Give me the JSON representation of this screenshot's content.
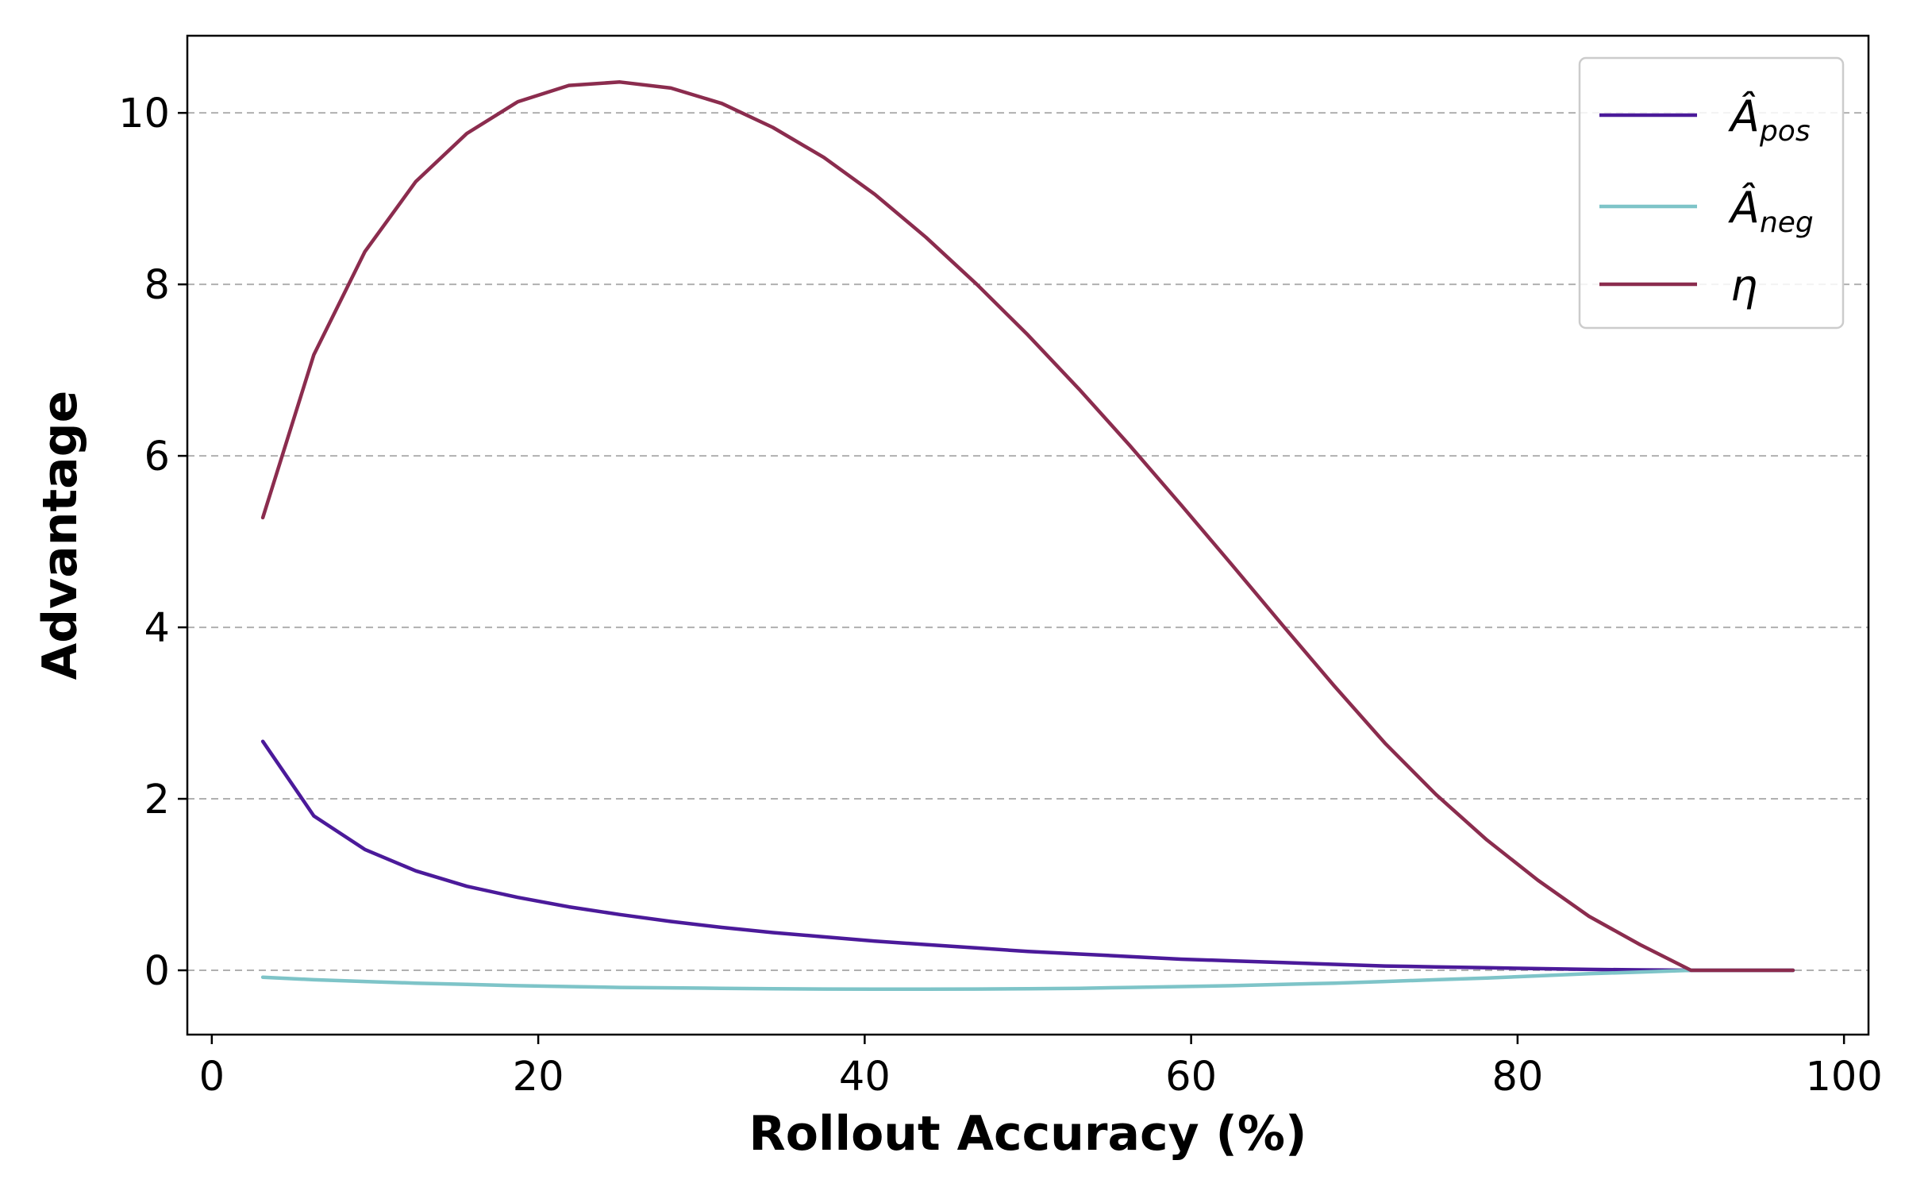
{
  "chart_data": {
    "type": "line",
    "title": "",
    "xlabel": "Rollout Accuracy (%)",
    "ylabel": "Advantage",
    "xlim": [
      -1.5,
      101.5
    ],
    "ylim": [
      -0.75,
      10.9
    ],
    "xticks": [
      "0",
      "20",
      "40",
      "60",
      "80",
      "100"
    ],
    "yticks": [
      "0",
      "2",
      "4",
      "6",
      "8",
      "10"
    ],
    "grid": "horizontal dashed",
    "legend_position": "top-right",
    "x": [
      3.125,
      6.25,
      9.375,
      12.5,
      15.625,
      18.75,
      21.875,
      25,
      28.125,
      31.25,
      34.375,
      37.5,
      40.625,
      43.75,
      46.875,
      50,
      53.125,
      56.25,
      59.375,
      62.5,
      65.625,
      68.75,
      71.875,
      75,
      78.125,
      81.25,
      84.375,
      87.5,
      90.625,
      93.75,
      96.875
    ],
    "series": [
      {
        "name": "Â_pos",
        "legend_main": "Â",
        "legend_sub": "pos",
        "color": "#4b1a9a",
        "values": [
          2.67,
          1.8,
          1.41,
          1.16,
          0.98,
          0.85,
          0.74,
          0.65,
          0.57,
          0.5,
          0.44,
          0.39,
          0.34,
          0.3,
          0.26,
          0.22,
          0.19,
          0.16,
          0.13,
          0.11,
          0.09,
          0.07,
          0.05,
          0.04,
          0.03,
          0.02,
          0.01,
          0.005,
          0.0,
          0.0,
          0.0
        ]
      },
      {
        "name": "Â_neg",
        "legend_main": "Â",
        "legend_sub": "neg",
        "color": "#7ec4c8",
        "values": [
          -0.08,
          -0.11,
          -0.13,
          -0.15,
          -0.165,
          -0.18,
          -0.19,
          -0.2,
          -0.205,
          -0.21,
          -0.215,
          -0.218,
          -0.22,
          -0.22,
          -0.218,
          -0.215,
          -0.21,
          -0.2,
          -0.19,
          -0.18,
          -0.165,
          -0.15,
          -0.13,
          -0.11,
          -0.09,
          -0.065,
          -0.04,
          -0.02,
          0.0,
          0.0,
          0.0
        ]
      },
      {
        "name": "η",
        "legend_main": "η",
        "legend_sub": "",
        "color": "#8b2c4e",
        "values": [
          5.28,
          7.18,
          8.38,
          9.2,
          9.76,
          10.13,
          10.32,
          10.36,
          10.29,
          10.11,
          9.83,
          9.48,
          9.05,
          8.55,
          8.0,
          7.41,
          6.78,
          6.12,
          5.43,
          4.73,
          4.02,
          3.32,
          2.65,
          2.05,
          1.52,
          1.05,
          0.63,
          0.3,
          0.0,
          0.0,
          0.0
        ]
      }
    ]
  }
}
